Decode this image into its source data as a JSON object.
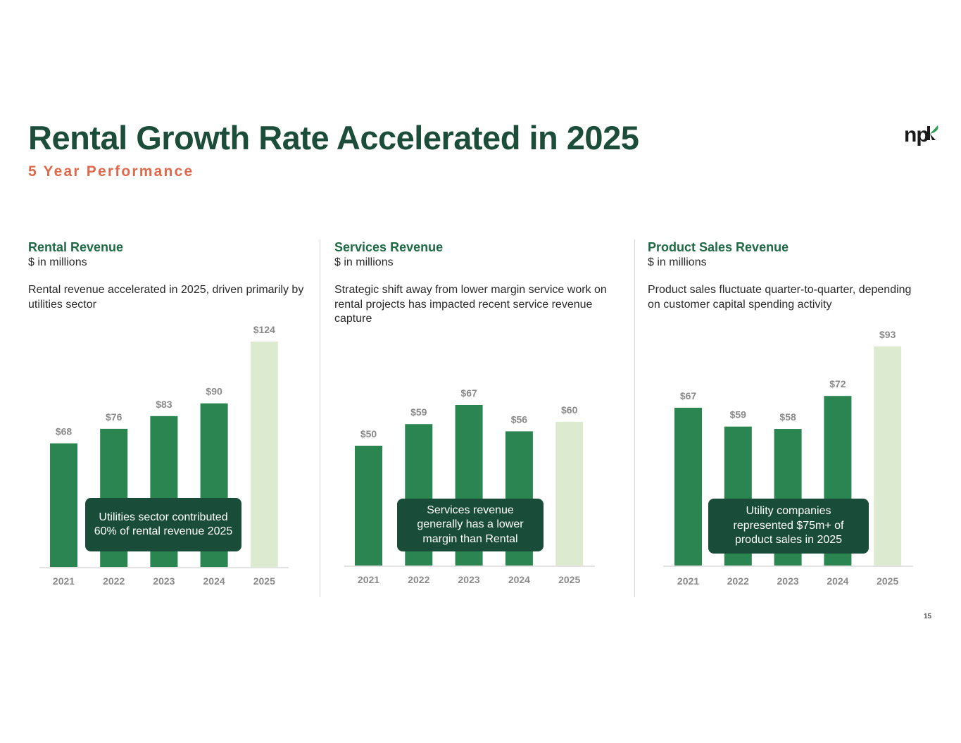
{
  "header": {
    "title": "Rental Growth Rate Accelerated in 2025",
    "subtitle": "5 Year Performance",
    "logo_text": "np",
    "logo_colors": {
      "text": "#1a1a1a",
      "leaf": "#2e9a52"
    }
  },
  "colors": {
    "bar": "#2a8550",
    "bar_highlight": "#dcebd0",
    "callout_bg": "#1a4d39",
    "title": "#1b4d3a",
    "subtitle": "#e0694b"
  },
  "panels": [
    {
      "title": "Rental Revenue",
      "unit": "$ in millions",
      "description": "Rental revenue accelerated in 2025, driven primarily by utilities sector",
      "callout": "Utilities sector contributed 60% of rental revenue  2025"
    },
    {
      "title": "Services Revenue",
      "unit": "$ in millions",
      "description": "Strategic shift away from lower margin service work on rental projects has impacted recent service revenue capture",
      "callout": "Services revenue generally has a lower margin than Rental"
    },
    {
      "title": "Product Sales Revenue",
      "unit": "$ in millions",
      "description": "Product sales fluctuate quarter-to-quarter, depending on customer capital spending activity",
      "callout": "Utility companies represented $75m+ of product sales in 2025"
    }
  ],
  "chart_data": [
    {
      "type": "bar",
      "title": "Rental Revenue",
      "ylabel": "$ in millions",
      "categories": [
        "2021",
        "2022",
        "2023",
        "2024",
        "2025"
      ],
      "values": [
        68,
        76,
        83,
        90,
        124
      ],
      "labels": [
        "$68",
        "$76",
        "$83",
        "$90",
        "$124"
      ],
      "highlight_index": 4,
      "ylim": [
        0,
        124
      ]
    },
    {
      "type": "bar",
      "title": "Services Revenue",
      "ylabel": "$ in millions",
      "categories": [
        "2021",
        "2022",
        "2023",
        "2024",
        "2025"
      ],
      "values": [
        50,
        59,
        67,
        56,
        60
      ],
      "labels": [
        "$50",
        "$59",
        "$67",
        "$56",
        "$60"
      ],
      "highlight_index": 4,
      "ylim": [
        0,
        67
      ]
    },
    {
      "type": "bar",
      "title": "Product Sales Revenue",
      "ylabel": "$ in millions",
      "categories": [
        "2021",
        "2022",
        "2023",
        "2024",
        "2025"
      ],
      "values": [
        67,
        59,
        58,
        72,
        93
      ],
      "labels": [
        "$67",
        "$59",
        "$58",
        "$72",
        "$93"
      ],
      "highlight_index": 4,
      "ylim": [
        0,
        93
      ]
    }
  ],
  "footer": {
    "page_number": "15"
  }
}
